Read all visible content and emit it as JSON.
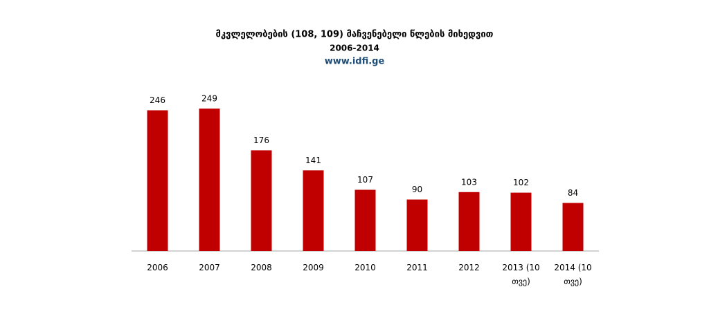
{
  "chart_data": {
    "type": "bar",
    "title": "მკვლელობების (108, 109) მაჩვენებელი წლების მიხედვით",
    "subtitle": "2006-2014",
    "source": "www.idfi.ge",
    "categories": [
      "2006",
      "2007",
      "2008",
      "2009",
      "2010",
      "2011",
      "2012",
      "2013 (10 თვე)",
      "2014 (10 თვე)"
    ],
    "values": [
      246,
      249,
      176,
      141,
      107,
      90,
      103,
      102,
      84
    ],
    "color": "#c00000"
  }
}
